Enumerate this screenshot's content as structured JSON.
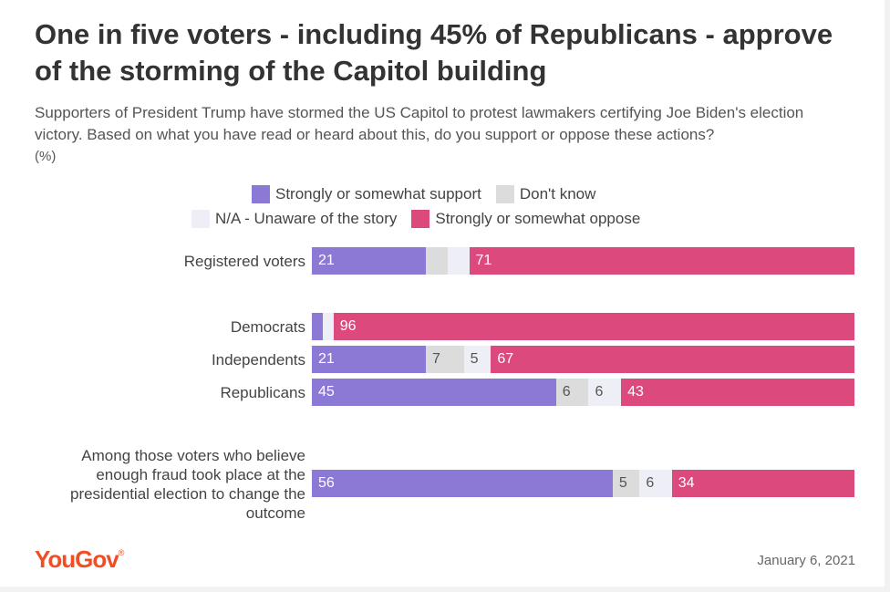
{
  "title": "One in five voters - including 45% of Republicans - approve of the storming of the Capitol building",
  "subtitle": "Supporters of President Trump have stormed the US Capitol to protest lawmakers certifying Joe Biden's election victory. Based on what you have read or heard about this, do you support or oppose these actions?",
  "unit": "(%)",
  "logo": "YouGov",
  "logo_mark": "®",
  "date": "January 6, 2021",
  "colors": {
    "support": "#8c79d6",
    "dont_know": "#dcdcdc",
    "unaware": "#eeeef6",
    "oppose": "#dc4a7d"
  },
  "chart_data": {
    "type": "bar",
    "orientation": "horizontal",
    "stacked": true,
    "legend_placement": "top",
    "xlim": [
      0,
      100
    ],
    "categories": [
      "Registered voters",
      "Democrats",
      "Independents",
      "Republicans",
      "Among those voters who believe enough fraud took place at the presidential election to change the outcome"
    ],
    "series": [
      {
        "name": "Strongly or somewhat support",
        "color": "#8c79d6",
        "values": [
          21,
          2,
          21,
          45,
          56
        ],
        "labels": [
          "21",
          "",
          "21",
          "45",
          "56"
        ]
      },
      {
        "name": "Don't know",
        "color": "#dcdcdc",
        "values": [
          4,
          0,
          7,
          6,
          5
        ],
        "labels": [
          "",
          "",
          "7",
          "6",
          "5"
        ]
      },
      {
        "name": "N/A - Unaware of the story",
        "color": "#eeeef6",
        "values": [
          4,
          2,
          5,
          6,
          6
        ],
        "labels": [
          "",
          "",
          "5",
          "6",
          "6"
        ]
      },
      {
        "name": "Strongly or somewhat oppose",
        "color": "#dc4a7d",
        "values": [
          71,
          96,
          67,
          43,
          34
        ],
        "labels": [
          "71",
          "96",
          "67",
          "43",
          "34"
        ]
      }
    ]
  }
}
